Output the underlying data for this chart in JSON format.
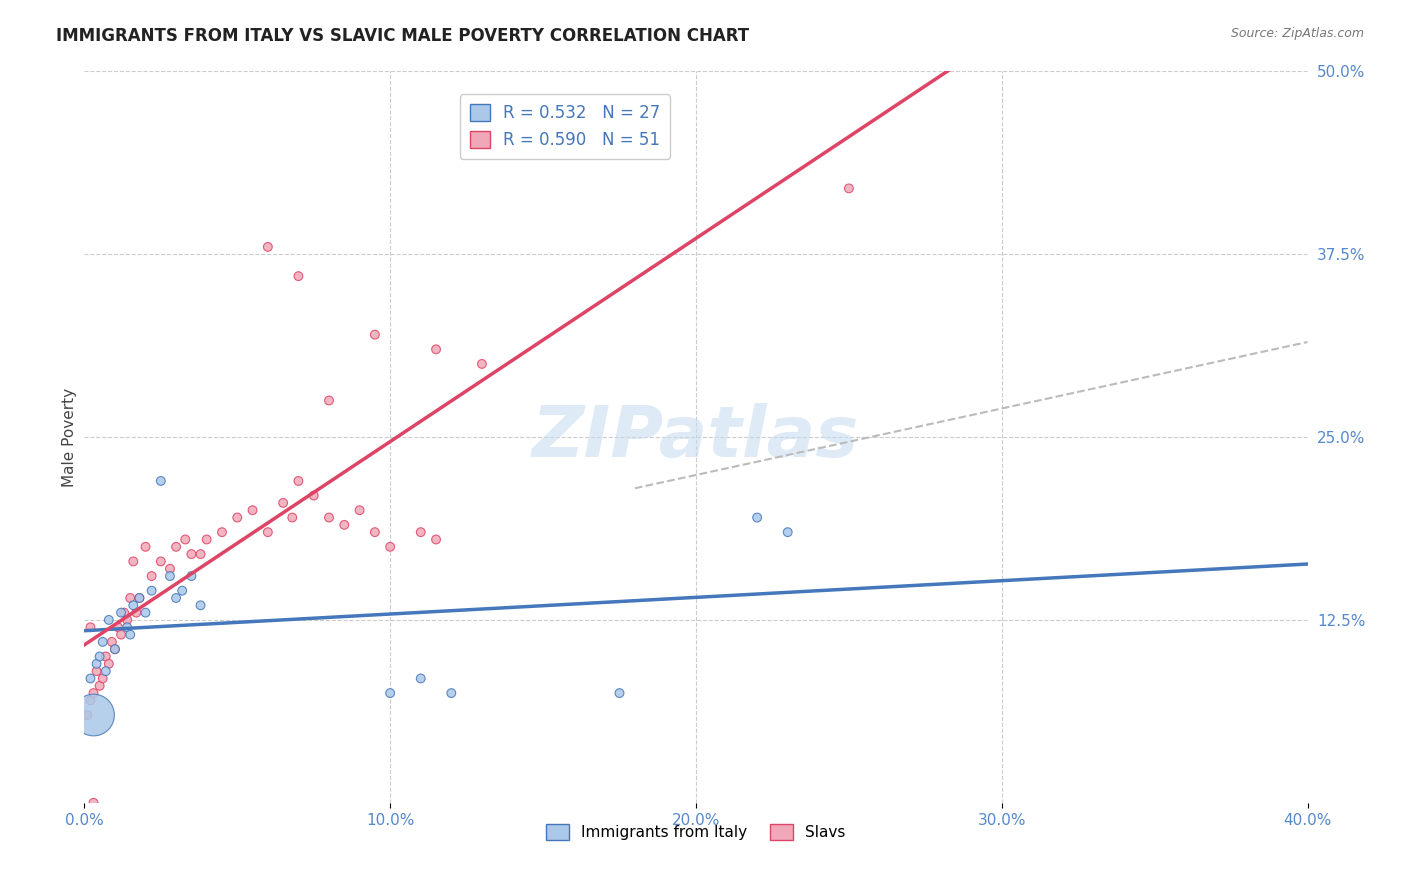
{
  "title": "IMMIGRANTS FROM ITALY VS SLAVIC MALE POVERTY CORRELATION CHART",
  "source": "Source: ZipAtlas.com",
  "ylabel": "Male Poverty",
  "xlim": [
    0.0,
    0.4
  ],
  "ylim": [
    0.0,
    0.5
  ],
  "yticks": [
    0.125,
    0.25,
    0.375,
    0.5
  ],
  "ytick_labels": [
    "12.5%",
    "25.0%",
    "37.5%",
    "50.0%"
  ],
  "xtick_vals": [
    0.0,
    0.1,
    0.2,
    0.3,
    0.4
  ],
  "xtick_labels": [
    "0.0%",
    "10.0%",
    "20.0%",
    "30.0%",
    "40.0%"
  ],
  "background_color": "#ffffff",
  "grid_color": "#cccccc",
  "watermark_text": "ZIPatlas",
  "watermark_color": "#c8ddf0",
  "legend_R_italy": "R = 0.532",
  "legend_N_italy": "N = 27",
  "legend_R_slavs": "R = 0.590",
  "legend_N_slavs": "N = 51",
  "italy_color": "#aac8e8",
  "italy_line_color": "#4477bb",
  "slavs_color": "#f0a8b8",
  "slavs_line_color": "#dd4466",
  "italy_scatter_x": [
    0.002,
    0.004,
    0.005,
    0.006,
    0.007,
    0.008,
    0.01,
    0.012,
    0.014,
    0.015,
    0.016,
    0.018,
    0.02,
    0.022,
    0.025,
    0.028,
    0.03,
    0.032,
    0.035,
    0.038,
    0.1,
    0.11,
    0.12,
    0.175,
    0.22,
    0.23,
    0.003
  ],
  "italy_scatter_y": [
    0.085,
    0.095,
    0.1,
    0.11,
    0.09,
    0.125,
    0.105,
    0.13,
    0.12,
    0.115,
    0.135,
    0.14,
    0.13,
    0.145,
    0.22,
    0.155,
    0.14,
    0.145,
    0.155,
    0.135,
    0.075,
    0.085,
    0.075,
    0.075,
    0.195,
    0.185,
    0.06
  ],
  "italy_scatter_sizes": [
    40,
    40,
    40,
    40,
    40,
    40,
    40,
    40,
    40,
    40,
    40,
    40,
    40,
    40,
    40,
    40,
    40,
    40,
    40,
    40,
    40,
    40,
    40,
    40,
    40,
    40,
    900
  ],
  "slavs_scatter_x": [
    0.001,
    0.002,
    0.003,
    0.004,
    0.005,
    0.006,
    0.007,
    0.008,
    0.009,
    0.01,
    0.011,
    0.012,
    0.013,
    0.014,
    0.015,
    0.016,
    0.017,
    0.018,
    0.02,
    0.022,
    0.025,
    0.028,
    0.03,
    0.033,
    0.035,
    0.038,
    0.04,
    0.045,
    0.05,
    0.055,
    0.06,
    0.065,
    0.068,
    0.07,
    0.075,
    0.08,
    0.085,
    0.09,
    0.095,
    0.1,
    0.11,
    0.115,
    0.095,
    0.115,
    0.08,
    0.13,
    0.06,
    0.07,
    0.25,
    0.003,
    0.002
  ],
  "slavs_scatter_y": [
    0.06,
    0.07,
    0.075,
    0.09,
    0.08,
    0.085,
    0.1,
    0.095,
    0.11,
    0.105,
    0.12,
    0.115,
    0.13,
    0.125,
    0.14,
    0.165,
    0.13,
    0.14,
    0.175,
    0.155,
    0.165,
    0.16,
    0.175,
    0.18,
    0.17,
    0.17,
    0.18,
    0.185,
    0.195,
    0.2,
    0.185,
    0.205,
    0.195,
    0.22,
    0.21,
    0.195,
    0.19,
    0.2,
    0.185,
    0.175,
    0.185,
    0.18,
    0.32,
    0.31,
    0.275,
    0.3,
    0.38,
    0.36,
    0.42,
    0.0,
    0.12
  ],
  "slavs_scatter_sizes": [
    40,
    40,
    40,
    40,
    40,
    40,
    40,
    40,
    40,
    40,
    40,
    40,
    40,
    40,
    40,
    40,
    40,
    40,
    40,
    40,
    40,
    40,
    40,
    40,
    40,
    40,
    40,
    40,
    40,
    40,
    40,
    40,
    40,
    40,
    40,
    40,
    40,
    40,
    40,
    40,
    40,
    40,
    40,
    40,
    40,
    40,
    40,
    40,
    40,
    40,
    40
  ]
}
